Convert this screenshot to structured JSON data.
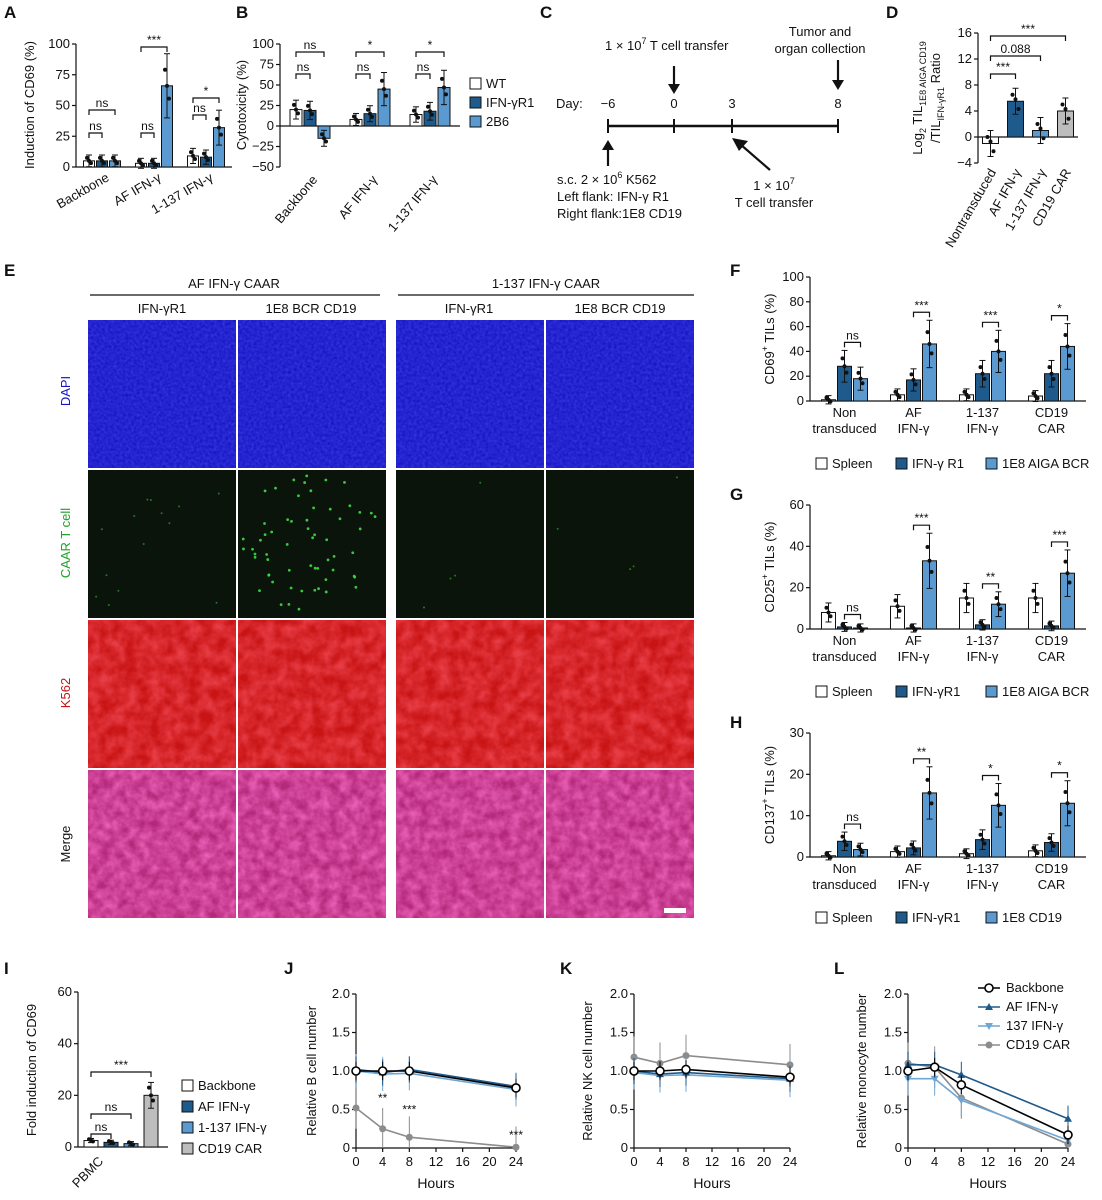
{
  "colors": {
    "white_bar": "#ffffff",
    "dark_blue": "#1f5a8c",
    "light_blue": "#5a9ad0",
    "grey_bar": "#bdbdbd",
    "line_black": "#000000",
    "line_dark_blue": "#1f5a8c",
    "line_light_blue": "#6fa6d4",
    "line_grey": "#8c8c8c",
    "dapi": "#1414c8",
    "caar": "#0a140a",
    "k562": "#c81414",
    "merge": "#b4287a"
  },
  "chart_data": [
    {
      "panel": "A",
      "type": "bar",
      "ylabel": "Induction of CD69 (%)",
      "ylim": [
        0,
        100
      ],
      "yticks": [
        "0",
        "25",
        "50",
        "75",
        "100"
      ],
      "categories": [
        "Backbone",
        "AF IFN-γ",
        "1-137 IFN-γ"
      ],
      "series": [
        {
          "values": [
            5,
            3,
            9
          ]
        },
        {
          "values": [
            5,
            3,
            8
          ]
        },
        {
          "values": [
            5,
            66,
            32
          ]
        }
      ],
      "annotations": [
        "ns",
        "ns",
        "ns",
        "***",
        "ns",
        "*"
      ]
    },
    {
      "panel": "B",
      "type": "bar",
      "ylabel": "Cytotoxicity (%)",
      "ylim": [
        -50,
        100
      ],
      "yticks": [
        "−50",
        "−25",
        "0",
        "25",
        "50",
        "75",
        "100"
      ],
      "categories": [
        "Backbone",
        "AF IFN-γ",
        "1-137 IFN-γ"
      ],
      "series": [
        {
          "name": "WT",
          "values": [
            20,
            8,
            14
          ]
        },
        {
          "name": "IFN-γR1",
          "values": [
            19,
            15,
            18
          ]
        },
        {
          "name": "2B6",
          "values": [
            -15,
            45,
            47
          ]
        }
      ],
      "annotations": [
        "ns",
        "ns",
        "ns",
        "*",
        "ns",
        "*"
      ]
    },
    {
      "panel": "D",
      "type": "bar",
      "ylabel_main": "Log",
      "ylabel_sub1": "2",
      "ylabel_mid": " TIL",
      "ylabel_sub2": "1E8 AIGA CD19",
      "ylabel_line2": "/TIL",
      "ylabel_sub3": "IFN-γR1",
      "ylabel_end": " Ratio",
      "ylim": [
        -4,
        16
      ],
      "yticks": [
        "−4",
        "0",
        "4",
        "8",
        "12",
        "16"
      ],
      "categories": [
        "Nontransduced",
        "AF IFN-γ",
        "1-137 IFN-γ",
        "CD19 CAR"
      ],
      "values": [
        -1,
        5.5,
        1,
        4
      ],
      "annotations": [
        "***",
        "0.088",
        "***"
      ]
    },
    {
      "panel": "F",
      "type": "bar",
      "ylabel": "CD69",
      "ylabel_sup": "+",
      "ylabel_end": " TILs (%)",
      "ylim": [
        0,
        100
      ],
      "yticks": [
        "0",
        "20",
        "40",
        "60",
        "80",
        "100"
      ],
      "categories": [
        "Non transduced",
        "AF IFN-γ",
        "1-137 IFN-γ",
        "CD19 CAR"
      ],
      "cat_lines": [
        [
          "Non",
          "transduced"
        ],
        [
          "AF",
          "IFN-γ"
        ],
        [
          "1-137",
          "IFN-γ"
        ],
        [
          "CD19",
          "CAR"
        ]
      ],
      "series": [
        {
          "name": "Spleen",
          "values": [
            1,
            5,
            5,
            4
          ]
        },
        {
          "name": "IFN-γ R1",
          "values": [
            28,
            17,
            22,
            22
          ]
        },
        {
          "name": "1E8 AIGA BCR",
          "values": [
            18,
            46,
            40,
            44
          ]
        }
      ],
      "annotations": [
        "ns",
        "***",
        "***",
        "*"
      ]
    },
    {
      "panel": "G",
      "type": "bar",
      "ylabel": "CD25",
      "ylabel_sup": "+",
      "ylabel_end": " TILs (%)",
      "ylim": [
        0,
        60
      ],
      "yticks": [
        "0",
        "20",
        "40",
        "60"
      ],
      "categories": [
        "Non transduced",
        "AF IFN-γ",
        "1-137 IFN-γ",
        "CD19 CAR"
      ],
      "cat_lines": [
        [
          "Non",
          "transduced"
        ],
        [
          "AF",
          "IFN-γ"
        ],
        [
          "1-137",
          "IFN-γ"
        ],
        [
          "CD19",
          "CAR"
        ]
      ],
      "series": [
        {
          "name": "Spleen",
          "values": [
            8,
            11,
            15,
            15
          ]
        },
        {
          "name": "IFN-γR1",
          "values": [
            1,
            0.5,
            2,
            1.5
          ]
        },
        {
          "name": "1E8 AIGA BCR",
          "values": [
            0.5,
            33,
            12,
            27
          ]
        }
      ],
      "annotations": [
        "ns",
        "***",
        "**",
        "***"
      ]
    },
    {
      "panel": "H",
      "type": "bar",
      "ylabel": "CD137",
      "ylabel_sup": "+",
      "ylabel_end": " TILs (%)",
      "ylim": [
        0,
        30
      ],
      "yticks": [
        "0",
        "10",
        "20",
        "30"
      ],
      "categories": [
        "Non transduced",
        "AF IFN-γ",
        "1-137 IFN-γ",
        "CD19 CAR"
      ],
      "cat_lines": [
        [
          "Non",
          "transduced"
        ],
        [
          "AF",
          "IFN-γ"
        ],
        [
          "1-137",
          "IFN-γ"
        ],
        [
          "CD19",
          "CAR"
        ]
      ],
      "series": [
        {
          "name": "Spleen",
          "values": [
            0.3,
            1.3,
            0.8,
            1.5
          ]
        },
        {
          "name": "IFN-γR1",
          "values": [
            3.8,
            2.2,
            4.2,
            3.5
          ]
        },
        {
          "name": "1E8 CD19",
          "values": [
            1.8,
            15.5,
            12.5,
            13
          ]
        }
      ],
      "annotations": [
        "ns",
        "**",
        "*",
        "*"
      ]
    },
    {
      "panel": "I",
      "type": "bar",
      "ylabel": "Fold induction of CD69",
      "ylim": [
        0,
        60
      ],
      "yticks": [
        "0",
        "20",
        "40",
        "60"
      ],
      "categories": [
        "PBMC"
      ],
      "series": [
        {
          "name": "Backbone",
          "values": [
            2.5
          ]
        },
        {
          "name": "AF IFN-γ",
          "values": [
            1.8
          ]
        },
        {
          "name": "1-137 IFN-γ",
          "values": [
            1.3
          ]
        },
        {
          "name": "CD19 CAR",
          "values": [
            20
          ]
        }
      ],
      "annotations": [
        "ns",
        "ns",
        "***"
      ]
    },
    {
      "panel": "J",
      "type": "line",
      "xlabel": "Hours",
      "ylabel": "Relative B cell number",
      "xlim": [
        0,
        24
      ],
      "xticks": [
        "0",
        "4",
        "8",
        "12",
        "16",
        "20",
        "24"
      ],
      "ylim": [
        0,
        2
      ],
      "yticks": [
        "0",
        "0.5",
        "1.0",
        "1.5",
        "2.0"
      ],
      "x": [
        0,
        4,
        8,
        24
      ],
      "series": [
        {
          "values": [
            1.0,
            1.0,
            1.0,
            0.78
          ]
        },
        {
          "values": [
            1.02,
            0.98,
            1.02,
            0.8
          ]
        },
        {
          "values": [
            1.0,
            0.96,
            0.97,
            0.76
          ]
        },
        {
          "values": [
            0.52,
            0.25,
            0.14,
            0.01
          ]
        }
      ],
      "annotations": [
        "**",
        "***",
        "***"
      ]
    },
    {
      "panel": "K",
      "type": "line",
      "xlabel": "Hours",
      "ylabel": "Relative NK cell number",
      "xlim": [
        0,
        24
      ],
      "xticks": [
        "0",
        "4",
        "8",
        "12",
        "16",
        "20",
        "24"
      ],
      "ylim": [
        0,
        2
      ],
      "yticks": [
        "0",
        "0.5",
        "1.0",
        "1.5",
        "2.0"
      ],
      "x": [
        0,
        4,
        8,
        24
      ],
      "series": [
        {
          "values": [
            1.0,
            1.0,
            1.02,
            0.92
          ]
        },
        {
          "values": [
            1.0,
            0.96,
            0.98,
            0.9
          ]
        },
        {
          "values": [
            0.98,
            0.94,
            0.95,
            0.88
          ]
        },
        {
          "values": [
            1.18,
            1.1,
            1.2,
            1.08
          ]
        }
      ]
    },
    {
      "panel": "L",
      "type": "line",
      "xlabel": "Hours",
      "ylabel": "Relative monocyte number",
      "xlim": [
        0,
        24
      ],
      "xticks": [
        "0",
        "4",
        "8",
        "12",
        "16",
        "20",
        "24"
      ],
      "ylim": [
        0,
        2
      ],
      "yticks": [
        "0",
        "0.5",
        "1.0",
        "1.5",
        "2.0"
      ],
      "x": [
        0,
        4,
        8,
        24
      ],
      "series": [
        {
          "name": "Backbone",
          "values": [
            1.0,
            1.05,
            0.82,
            0.17
          ]
        },
        {
          "name": "AF IFN-γ",
          "values": [
            1.08,
            1.08,
            0.95,
            0.38
          ]
        },
        {
          "name": "137 IFN-γ",
          "values": [
            0.9,
            0.9,
            0.62,
            0.1
          ]
        },
        {
          "name": "CD19 CAR",
          "values": [
            1.1,
            1.05,
            0.65,
            0.05
          ]
        }
      ]
    }
  ],
  "panel_labels": [
    "A",
    "B",
    "C",
    "D",
    "E",
    "F",
    "G",
    "H",
    "I",
    "J",
    "K",
    "L"
  ],
  "timeline": {
    "top_transfer_label": "1 × 10",
    "top_transfer_sup": "7",
    "top_transfer_rest": " T cell transfer",
    "collection_line1": "Tumor and",
    "collection_line2": "organ collection",
    "day_label": "Day:",
    "days": [
      "−6",
      "0",
      "3",
      "8"
    ],
    "sc_line1_a": "s.c. 2 × 10",
    "sc_line1_sup": "6",
    "sc_line1_b": " K562",
    "sc_line2": "Left flank: IFN-γ R1",
    "sc_line3": "Right flank:1E8 CD19",
    "second_transfer_line1_a": "1 × 10",
    "second_transfer_line1_sup": "7",
    "second_transfer_line2": "T cell transfer"
  },
  "microscopy": {
    "group_left": "AF IFN-γ CAAR",
    "group_right": "1-137 IFN-γ CAAR",
    "columns": [
      "IFN-γR1",
      "1E8 BCR CD19",
      "IFN-γR1",
      "1E8 BCR CD19"
    ],
    "rows": [
      "DAPI",
      "CAAR T cell",
      "K562",
      "Merge"
    ]
  }
}
